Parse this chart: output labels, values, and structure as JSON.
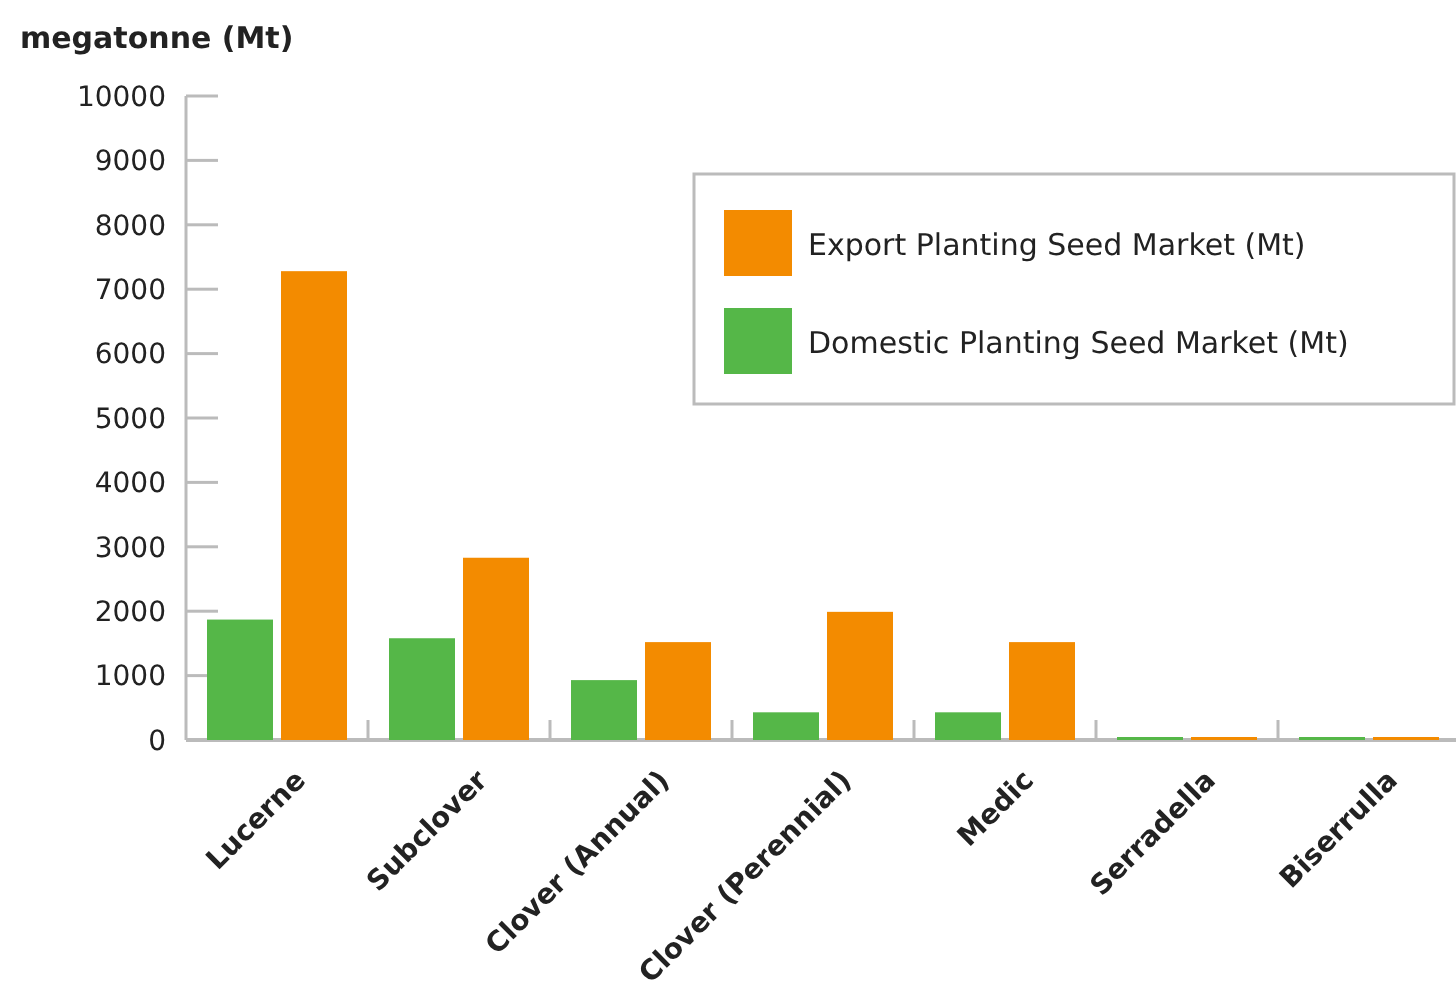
{
  "chart_data": {
    "type": "bar",
    "ylabel": "megatonne (Mt)",
    "categories": [
      "Lucerne",
      "Subclover",
      "Clover (Annual)",
      "Clover (Perennial)",
      "Medic",
      "Serradella",
      "Biserrulla"
    ],
    "series": [
      {
        "name": "Domestic Planting Seed Market (Mt)",
        "color": "#55b748",
        "values": [
          1870,
          1580,
          930,
          430,
          430,
          10,
          10
        ]
      },
      {
        "name": "Export Planting Seed Market (Mt)",
        "color": "#f38b00",
        "values": [
          7280,
          2830,
          1520,
          1990,
          1520,
          10,
          10
        ]
      }
    ],
    "ylim": [
      0,
      10000
    ],
    "yticks": [
      0,
      1000,
      2000,
      3000,
      4000,
      5000,
      6000,
      7000,
      8000,
      9000,
      10000
    ],
    "grid": false,
    "legend": "top right"
  }
}
